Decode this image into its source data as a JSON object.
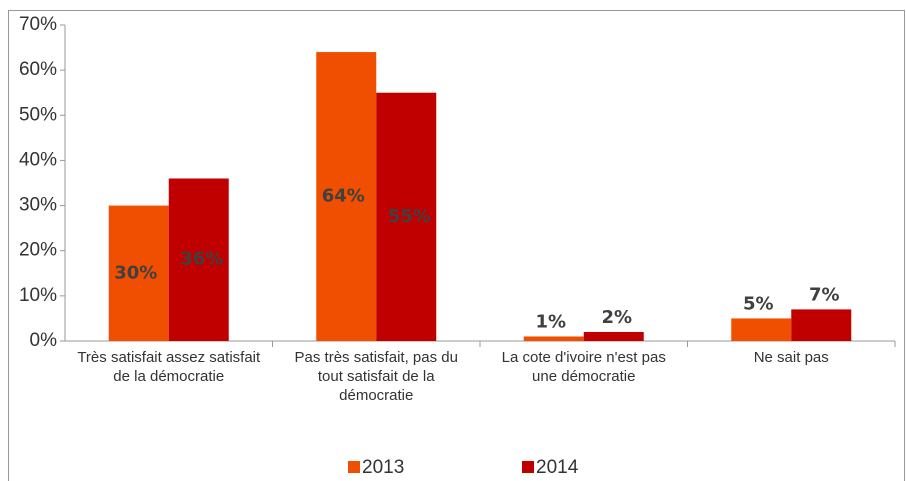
{
  "chart_data": {
    "type": "bar",
    "categories": [
      "Très satisfait assez satisfait de la démocratie",
      "Pas très satisfait, pas du tout satisfait de la démocratie",
      "La cote d'ivoire n'est pas une démocratie",
      "Ne sait pas"
    ],
    "series": [
      {
        "name": "2013",
        "color": "#f04e00",
        "values": [
          30,
          64,
          1,
          5
        ],
        "value_labels": [
          "30%",
          "64%",
          "1%",
          "5%"
        ]
      },
      {
        "name": "2014",
        "color": "#c00000",
        "values": [
          36,
          55,
          2,
          7
        ],
        "value_labels": [
          "36%",
          "55%",
          "2%",
          "7%"
        ]
      }
    ],
    "ylim": [
      0,
      70
    ],
    "yticks": [
      {
        "value": 0,
        "label": "0%"
      },
      {
        "value": 10,
        "label": "10%"
      },
      {
        "value": 20,
        "label": "20%"
      },
      {
        "value": 30,
        "label": "30%"
      },
      {
        "value": 40,
        "label": "40%"
      },
      {
        "value": 50,
        "label": "50%"
      },
      {
        "value": 60,
        "label": "60%"
      },
      {
        "value": 70,
        "label": "70%"
      }
    ],
    "grid": false,
    "legend": "bottom"
  }
}
